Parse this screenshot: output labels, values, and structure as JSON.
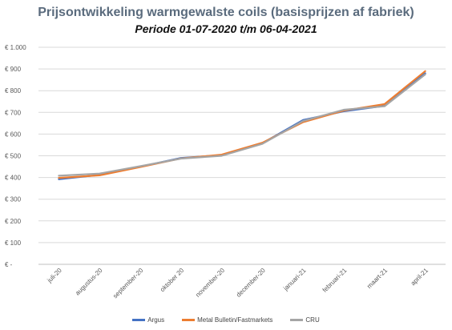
{
  "chart_data": {
    "type": "line",
    "title": "Prijsontwikkeling warmgewalste coils (basisprijzen af fabriek)",
    "subtitle": "Periode 01-07-2020 t/m 06-04-2021",
    "categories": [
      "juli-20",
      "augustus-20",
      "september-20",
      "oktober 20",
      "november-20",
      "december-20",
      "januari-21",
      "februari-21",
      "maart-21",
      "april-21"
    ],
    "y_tick_labels": [
      "€ -",
      "€ 100",
      "€ 200",
      "€ 300",
      "€ 400",
      "€ 500",
      "€ 600",
      "€ 700",
      "€ 800",
      "€ 900",
      "€ 1.000"
    ],
    "ylim": [
      0,
      1000
    ],
    "y_step": 100,
    "grid": true,
    "legend_position": "bottom",
    "series": [
      {
        "name": "Argus",
        "color": "#4472c4",
        "values": [
          392,
          412,
          450,
          490,
          503,
          558,
          665,
          705,
          730,
          880
        ]
      },
      {
        "name": "Metal Bulletin/Fastmarkets",
        "color": "#ed7d31",
        "values": [
          398,
          410,
          448,
          488,
          505,
          560,
          655,
          708,
          738,
          890
        ]
      },
      {
        "name": "CRU",
        "color": "#a5a5a5",
        "values": [
          408,
          418,
          452,
          487,
          500,
          555,
          660,
          712,
          728,
          875
        ]
      }
    ]
  }
}
